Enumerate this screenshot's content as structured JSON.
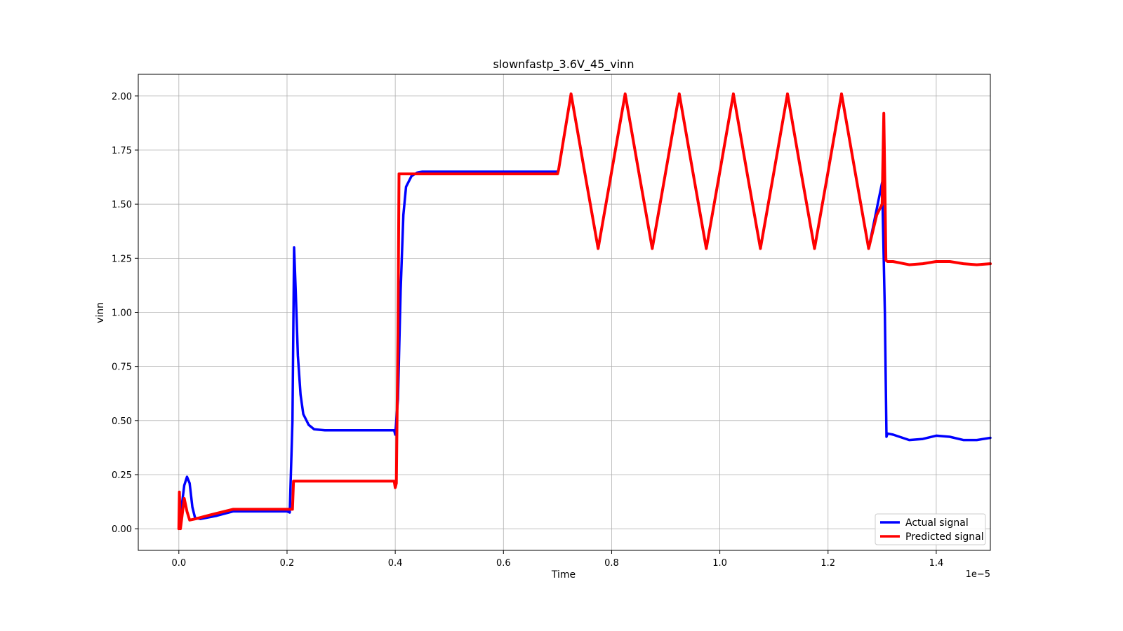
{
  "chart_data": {
    "type": "line",
    "title": "slownfastp_3.6V_45_vinn",
    "xlabel": "Time",
    "ylabel": "vinn",
    "x_offset_text": "1e−5",
    "x_scale": 1e-05,
    "xlim": [
      -0.075,
      1.5
    ],
    "ylim": [
      -0.1,
      2.1
    ],
    "xticks": [
      0.0,
      0.2,
      0.4,
      0.6,
      0.8,
      1.0,
      1.2,
      1.4
    ],
    "xtick_labels": [
      "0.0",
      "0.2",
      "0.4",
      "0.6",
      "0.8",
      "1.0",
      "1.2",
      "1.4"
    ],
    "yticks": [
      0.0,
      0.25,
      0.5,
      0.75,
      1.0,
      1.25,
      1.5,
      1.75,
      2.0
    ],
    "ytick_labels": [
      "0.00",
      "0.25",
      "0.50",
      "0.75",
      "1.00",
      "1.25",
      "1.50",
      "1.75",
      "2.00"
    ],
    "grid": true,
    "legend_position": "bottom-right",
    "series": [
      {
        "name": "Actual signal",
        "color": "#0000ff",
        "x": [
          0.0,
          0.005,
          0.01,
          0.015,
          0.02,
          0.025,
          0.03,
          0.04,
          0.07,
          0.1,
          0.15,
          0.2,
          0.205,
          0.21,
          0.213,
          0.216,
          0.22,
          0.225,
          0.23,
          0.24,
          0.25,
          0.27,
          0.3,
          0.35,
          0.398,
          0.4,
          0.405,
          0.41,
          0.415,
          0.42,
          0.43,
          0.44,
          0.45,
          0.5,
          0.6,
          0.7,
          0.702,
          0.725,
          0.75,
          0.775,
          0.8,
          0.825,
          0.85,
          0.875,
          0.9,
          0.925,
          0.95,
          0.975,
          1.0,
          1.025,
          1.05,
          1.075,
          1.1,
          1.125,
          1.15,
          1.175,
          1.2,
          1.225,
          1.25,
          1.275,
          1.3,
          1.305,
          1.308,
          1.31,
          1.32,
          1.35,
          1.375,
          1.4,
          1.425,
          1.45,
          1.475,
          1.5
        ],
        "y": [
          0.0,
          0.1,
          0.2,
          0.24,
          0.21,
          0.1,
          0.05,
          0.045,
          0.06,
          0.08,
          0.08,
          0.08,
          0.075,
          0.5,
          1.3,
          1.1,
          0.8,
          0.62,
          0.53,
          0.48,
          0.46,
          0.455,
          0.455,
          0.455,
          0.455,
          0.435,
          0.6,
          1.1,
          1.45,
          1.58,
          1.63,
          1.645,
          1.65,
          1.65,
          1.65,
          1.65,
          1.66,
          2.01,
          1.65,
          1.295,
          1.65,
          2.01,
          1.65,
          1.295,
          1.65,
          2.01,
          1.65,
          1.295,
          1.65,
          2.01,
          1.65,
          1.295,
          1.65,
          2.01,
          1.65,
          1.295,
          1.65,
          2.01,
          1.65,
          1.295,
          1.6,
          1.0,
          0.425,
          0.44,
          0.435,
          0.41,
          0.415,
          0.43,
          0.425,
          0.41,
          0.41,
          0.42
        ]
      },
      {
        "name": "Predicted signal",
        "color": "#ff0000",
        "x": [
          0.0,
          0.001,
          0.003,
          0.006,
          0.01,
          0.015,
          0.02,
          0.03,
          0.06,
          0.1,
          0.15,
          0.2,
          0.21,
          0.212,
          0.215,
          0.3,
          0.35,
          0.398,
          0.4,
          0.402,
          0.405,
          0.407,
          0.41,
          0.5,
          0.6,
          0.7,
          0.702,
          0.725,
          0.75,
          0.775,
          0.8,
          0.825,
          0.85,
          0.875,
          0.9,
          0.925,
          0.95,
          0.975,
          1.0,
          1.025,
          1.05,
          1.075,
          1.1,
          1.125,
          1.15,
          1.175,
          1.2,
          1.225,
          1.25,
          1.275,
          1.29,
          1.3,
          1.303,
          1.305,
          1.307,
          1.31,
          1.32,
          1.35,
          1.375,
          1.4,
          1.425,
          1.45,
          1.475,
          1.5
        ],
        "y": [
          0.0,
          0.17,
          0.0,
          0.06,
          0.14,
          0.08,
          0.04,
          0.045,
          0.065,
          0.09,
          0.09,
          0.09,
          0.09,
          0.22,
          0.22,
          0.22,
          0.22,
          0.22,
          0.19,
          0.21,
          0.9,
          1.64,
          1.64,
          1.64,
          1.64,
          1.64,
          1.66,
          2.01,
          1.65,
          1.295,
          1.65,
          2.01,
          1.65,
          1.295,
          1.65,
          2.01,
          1.65,
          1.295,
          1.65,
          2.01,
          1.65,
          1.295,
          1.65,
          2.01,
          1.65,
          1.295,
          1.65,
          2.01,
          1.65,
          1.295,
          1.45,
          1.5,
          1.92,
          1.6,
          1.24,
          1.235,
          1.235,
          1.22,
          1.225,
          1.235,
          1.235,
          1.225,
          1.22,
          1.225
        ]
      }
    ]
  }
}
